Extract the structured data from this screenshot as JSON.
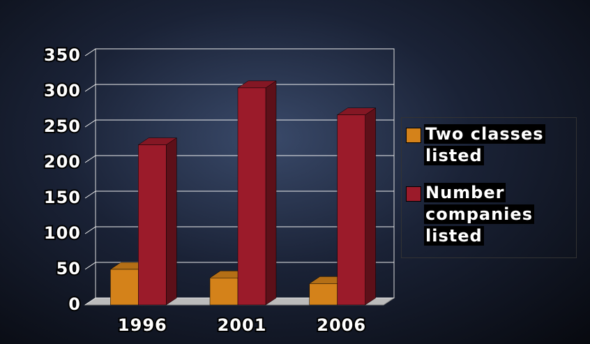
{
  "chart_data": {
    "type": "bar",
    "categories": [
      "1996",
      "2001",
      "2006"
    ],
    "series": [
      {
        "name": "Two classes listed",
        "color": "#d4821a",
        "values": [
          50,
          38,
          30
        ]
      },
      {
        "name": "Number companies listed",
        "color": "#9b1b2a",
        "values": [
          225,
          305,
          267
        ]
      }
    ],
    "ylim": [
      0,
      350
    ],
    "yticks": [
      0,
      50,
      100,
      150,
      200,
      250,
      300,
      350
    ],
    "grid": true,
    "legend": "right"
  }
}
